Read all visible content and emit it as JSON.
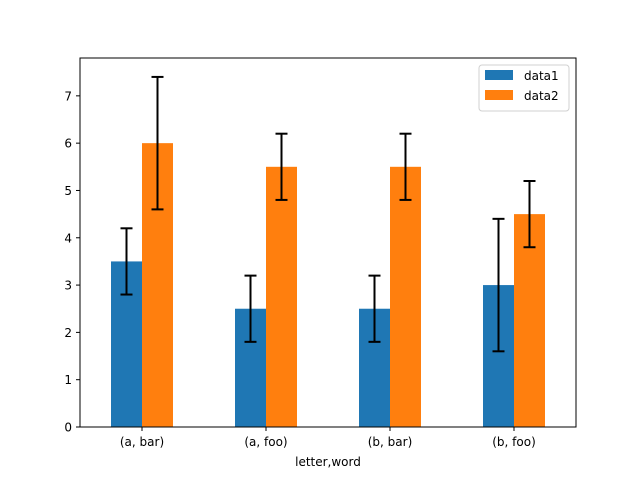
{
  "chart_data": {
    "type": "bar",
    "title": "",
    "xlabel": "letter,word",
    "ylabel": "",
    "categories": [
      "(a, bar)",
      "(a, foo)",
      "(b, bar)",
      "(b, foo)"
    ],
    "series": [
      {
        "name": "data1",
        "color": "#1f77b4",
        "values": [
          3.5,
          2.5,
          2.5,
          3.0
        ],
        "errors": [
          0.7,
          0.7,
          0.7,
          1.4
        ]
      },
      {
        "name": "data2",
        "color": "#ff7f0e",
        "values": [
          6.0,
          5.5,
          5.5,
          4.5
        ],
        "errors": [
          1.4,
          0.7,
          0.7,
          0.7
        ]
      }
    ],
    "ylim": [
      0,
      7.8
    ],
    "yticks": [
      0,
      1,
      2,
      3,
      4,
      5,
      6,
      7
    ],
    "grid": false,
    "legend": "top-right"
  }
}
